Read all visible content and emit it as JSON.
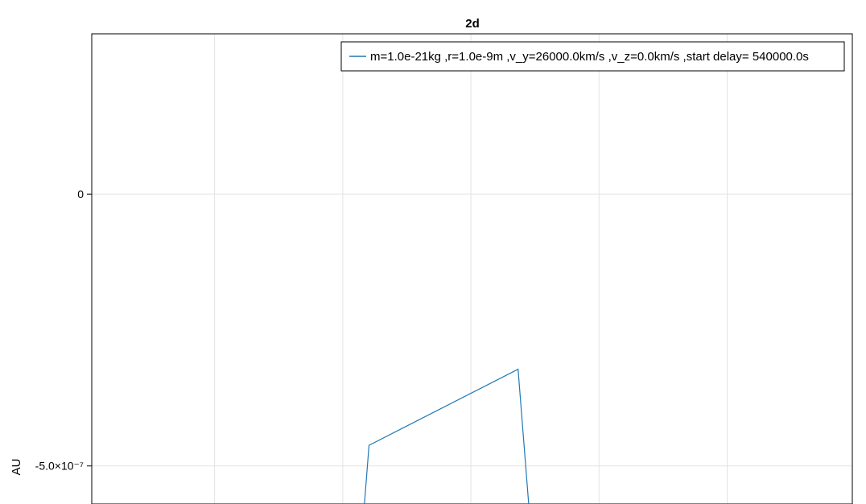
{
  "chart_data": {
    "type": "line",
    "title": "2d",
    "xlabel": "",
    "ylabel": "AU",
    "y_ticks": [
      {
        "value": 0,
        "label": "0"
      },
      {
        "value": -5e-07,
        "label": "-5.0×10⁻⁷"
      }
    ],
    "x_tick_labels": [],
    "grid": true,
    "legend": {
      "position": "top-right"
    },
    "series": [
      {
        "name": "m=1.0e-21kg ,r=1.0e-9m ,v_y=26000.0km/s ,v_z=0.0km/s ,start delay= 540000.0s",
        "color": "#1f78b4",
        "x": [
          0.3585,
          0.3645,
          0.5605,
          0.5745
        ],
        "y": [
          -5.7e-07,
          -4.62e-07,
          -3.22e-07,
          -5.7e-07
        ]
      }
    ],
    "xlim": [
      0,
      1
    ],
    "ylim": [
      -5.7e-07,
      2.95e-07
    ]
  }
}
